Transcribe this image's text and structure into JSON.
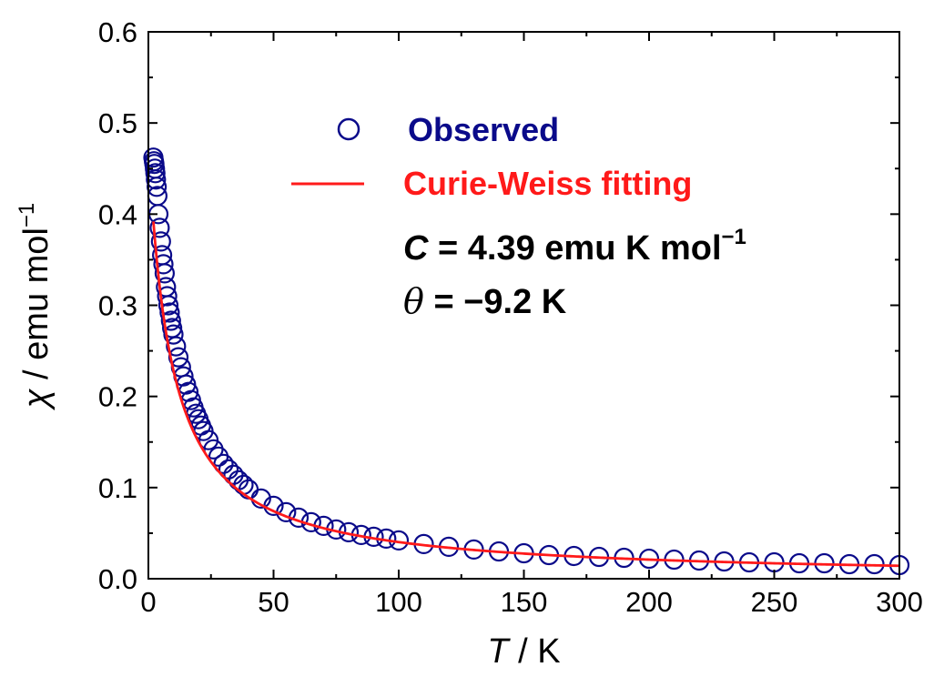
{
  "chart_data": {
    "type": "scatter",
    "xlabel_var": "T",
    "xlabel_unit": " / K",
    "ylabel_var": "χ",
    "ylabel_unit": " / emu mol",
    "ylabel_sup": "−1",
    "xlim": [
      0,
      300
    ],
    "ylim": [
      0,
      0.6
    ],
    "x_ticks": [
      "0",
      "50",
      "100",
      "150",
      "200",
      "250",
      "300"
    ],
    "y_ticks": [
      "0.0",
      "0.1",
      "0.2",
      "0.3",
      "0.4",
      "0.5",
      "0.6"
    ],
    "grid": false,
    "legend_position": "top-center",
    "colors": {
      "observed": "#0a0a8a",
      "fit": "#ff1a1a",
      "axis": "#000000"
    },
    "series": [
      {
        "name": "Observed",
        "kind": "scatter",
        "marker": "open-circle",
        "x": [
          2,
          2.2,
          2.4,
          2.6,
          2.8,
          3,
          3.3,
          3.6,
          4,
          4.5,
          5,
          5.5,
          6,
          6.5,
          7,
          7.5,
          8,
          8.5,
          9,
          9.5,
          10,
          11,
          12,
          13,
          14,
          15,
          16,
          17,
          18,
          19,
          20,
          21,
          22,
          24,
          26,
          28,
          30,
          32,
          34,
          36,
          38,
          40,
          45,
          50,
          55,
          60,
          65,
          70,
          75,
          80,
          85,
          90,
          95,
          100,
          110,
          120,
          130,
          140,
          150,
          160,
          170,
          180,
          190,
          200,
          210,
          220,
          230,
          240,
          250,
          260,
          270,
          280,
          290,
          300
        ],
        "y": [
          0.462,
          0.458,
          0.455,
          0.45,
          0.445,
          0.438,
          0.43,
          0.42,
          0.4,
          0.385,
          0.37,
          0.355,
          0.345,
          0.335,
          0.32,
          0.31,
          0.3,
          0.292,
          0.283,
          0.275,
          0.268,
          0.255,
          0.243,
          0.232,
          0.222,
          0.213,
          0.205,
          0.196,
          0.188,
          0.181,
          0.175,
          0.168,
          0.162,
          0.152,
          0.142,
          0.134,
          0.126,
          0.12,
          0.114,
          0.108,
          0.103,
          0.098,
          0.088,
          0.08,
          0.073,
          0.067,
          0.062,
          0.058,
          0.054,
          0.051,
          0.048,
          0.046,
          0.044,
          0.042,
          0.038,
          0.035,
          0.032,
          0.03,
          0.028,
          0.026,
          0.025,
          0.024,
          0.023,
          0.022,
          0.021,
          0.02,
          0.019,
          0.018,
          0.018,
          0.017,
          0.017,
          0.016,
          0.016,
          0.015
        ]
      },
      {
        "name": "Curie-Weiss fitting",
        "kind": "line",
        "model": "curie-weiss",
        "C": 4.39,
        "theta": -9.2,
        "x_range": [
          2,
          300
        ]
      }
    ],
    "annotations": {
      "C_label": "C",
      "C_text": " = 4.39 emu K mol",
      "C_sup": "−1",
      "theta_label": "θ",
      "theta_text": " = −9.2 K"
    }
  }
}
